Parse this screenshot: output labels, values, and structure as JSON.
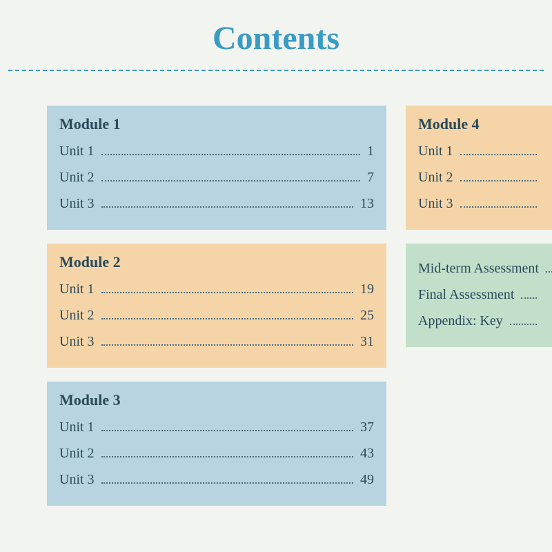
{
  "title": "Contents",
  "colors": {
    "title": "#3a9bc4",
    "dash": "#3a9bc4",
    "text": "#2a4a5a",
    "blue": "#b7d4e0",
    "orange": "#f5d5a8",
    "green": "#c2dfca",
    "background": "#f2f4f0"
  },
  "left_modules": [
    {
      "title": "Module 1",
      "bg": "blue",
      "units": [
        {
          "label": "Unit 1",
          "page": "1"
        },
        {
          "label": "Unit 2",
          "page": "7"
        },
        {
          "label": "Unit 3",
          "page": "13"
        }
      ]
    },
    {
      "title": "Module 2",
      "bg": "orange",
      "units": [
        {
          "label": "Unit 1",
          "page": "19"
        },
        {
          "label": "Unit 2",
          "page": "25"
        },
        {
          "label": "Unit 3",
          "page": "31"
        }
      ]
    },
    {
      "title": "Module 3",
      "bg": "blue",
      "units": [
        {
          "label": "Unit 1",
          "page": "37"
        },
        {
          "label": "Unit 2",
          "page": "43"
        },
        {
          "label": "Unit 3",
          "page": "49"
        }
      ]
    }
  ],
  "right_modules": [
    {
      "title": "Module 4",
      "bg": "orange",
      "units": [
        {
          "label": "Unit 1",
          "page": ""
        },
        {
          "label": "Unit 2",
          "page": ""
        },
        {
          "label": "Unit 3",
          "page": ""
        }
      ]
    },
    {
      "title": "",
      "bg": "green",
      "units": [
        {
          "label": "Mid-term Assessment",
          "page": ""
        },
        {
          "label": "Final Assessment",
          "page": ""
        },
        {
          "label": "Appendix: Key",
          "page": ""
        }
      ]
    }
  ]
}
